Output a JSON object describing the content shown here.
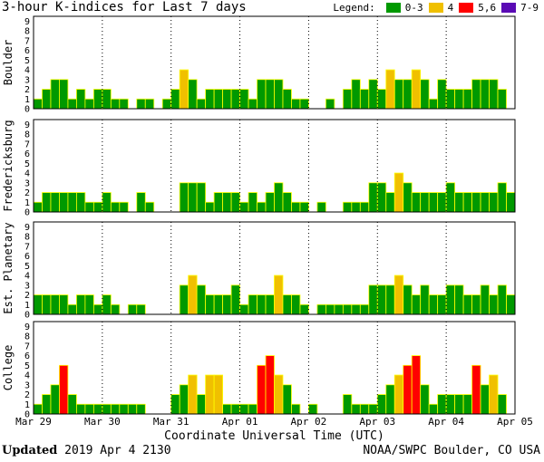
{
  "title": "3-hour K-indices for Last 7 days",
  "legend": {
    "label": "Legend:",
    "items": [
      {
        "label": "0-3",
        "color": "#009900"
      },
      {
        "label": "4",
        "color": "#f0c000"
      },
      {
        "label": "5,6",
        "color": "#ff0000"
      },
      {
        "label": "7-9",
        "color": "#5a0ab4"
      }
    ]
  },
  "footer": {
    "updated_label": "Updated",
    "updated_value": "2019 Apr  4 2130",
    "credit": "NOAA/SWPC Boulder, CO USA"
  },
  "chart_data": {
    "type": "bar",
    "xlabel": "Coordinate Universal Time (UTC)",
    "x_tick_labels": [
      "Mar 29",
      "Mar 30",
      "Mar 31",
      "Apr 01",
      "Apr 02",
      "Apr 03",
      "Apr 04",
      "Apr 05"
    ],
    "y_ticks": [
      0,
      1,
      2,
      3,
      4,
      5,
      6,
      7,
      8,
      9
    ],
    "ylim": [
      0,
      9
    ],
    "grid": false,
    "color_thresholds": [
      {
        "range": "0-3",
        "color": "#009900"
      },
      {
        "range": "4",
        "color": "#f0c000"
      },
      {
        "range": "5,6",
        "color": "#ff0000"
      },
      {
        "range": "7-9",
        "color": "#5a0ab4"
      }
    ],
    "panels": [
      {
        "name": "Boulder",
        "values": [
          1,
          2,
          3,
          3,
          1,
          2,
          1,
          2,
          2,
          1,
          1,
          0,
          1,
          1,
          0,
          1,
          2,
          4,
          3,
          1,
          2,
          2,
          2,
          2,
          2,
          1,
          3,
          3,
          3,
          2,
          1,
          1,
          0,
          0,
          1,
          0,
          2,
          3,
          2,
          3,
          2,
          4,
          3,
          3,
          4,
          3,
          1,
          3,
          2,
          2,
          2,
          3,
          3,
          3,
          2,
          0
        ]
      },
      {
        "name": "Fredericksburg",
        "values": [
          1,
          2,
          2,
          2,
          2,
          2,
          1,
          1,
          2,
          1,
          1,
          0,
          2,
          1,
          0,
          0,
          0,
          3,
          3,
          3,
          1,
          2,
          2,
          2,
          1,
          2,
          1,
          2,
          3,
          2,
          1,
          1,
          0,
          1,
          0,
          0,
          1,
          1,
          1,
          3,
          3,
          2,
          4,
          3,
          2,
          2,
          2,
          2,
          3,
          2,
          2,
          2,
          2,
          2,
          3,
          2,
          0
        ]
      },
      {
        "name": "Est. Planetary",
        "values": [
          2,
          2,
          2,
          2,
          1,
          2,
          2,
          1,
          2,
          1,
          0,
          1,
          1,
          0,
          0,
          0,
          0,
          3,
          4,
          3,
          2,
          2,
          2,
          3,
          1,
          2,
          2,
          2,
          4,
          2,
          2,
          1,
          0,
          1,
          1,
          1,
          1,
          1,
          1,
          3,
          3,
          3,
          4,
          3,
          2,
          3,
          2,
          2,
          3,
          3,
          2,
          2,
          3,
          2,
          3,
          2
        ]
      },
      {
        "name": "College",
        "values": [
          1,
          2,
          3,
          5,
          2,
          1,
          1,
          1,
          1,
          1,
          1,
          1,
          1,
          0,
          0,
          0,
          2,
          3,
          4,
          2,
          4,
          4,
          1,
          1,
          1,
          1,
          5,
          6,
          4,
          3,
          1,
          0,
          1,
          0,
          0,
          0,
          2,
          1,
          1,
          1,
          2,
          3,
          4,
          5,
          6,
          3,
          1,
          2,
          2,
          2,
          2,
          5,
          3,
          4,
          2,
          0
        ]
      }
    ]
  }
}
